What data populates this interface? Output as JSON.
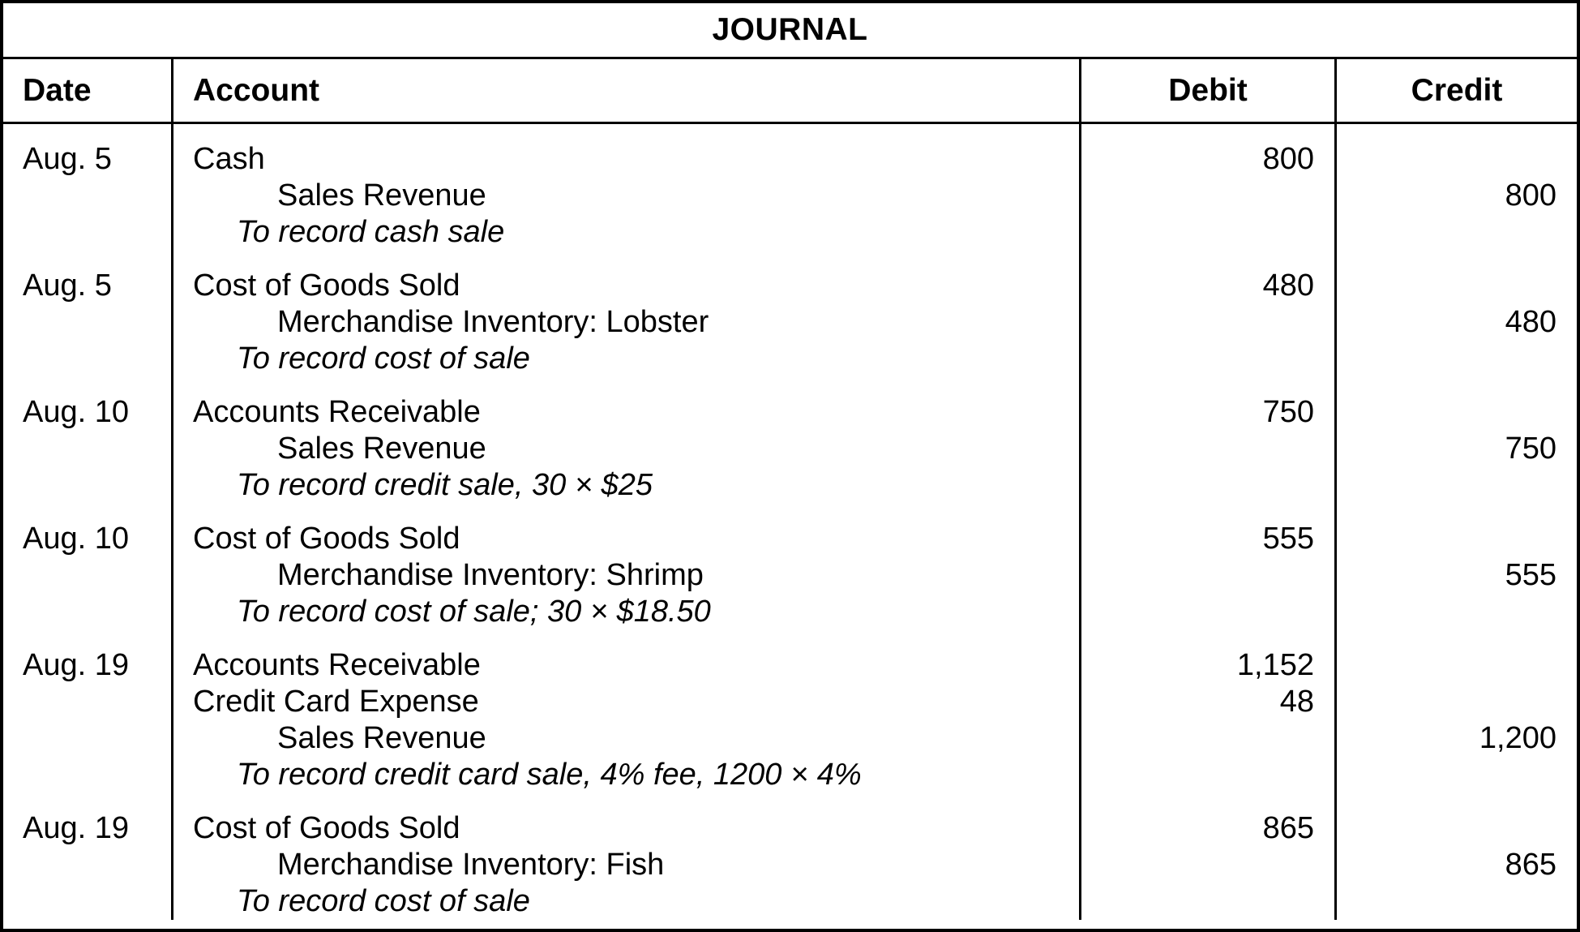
{
  "journal": {
    "title": "JOURNAL",
    "header": {
      "date": "Date",
      "account": "Account",
      "debit": "Debit",
      "credit": "Credit"
    },
    "entries": [
      {
        "date": "Aug. 5",
        "lines": [
          {
            "text": "Cash",
            "debit": "800"
          },
          {
            "text": "Sales Revenue",
            "credit": "800"
          },
          {
            "text": "To record cash sale"
          }
        ]
      },
      {
        "date": "Aug. 5",
        "lines": [
          {
            "text": "Cost of Goods Sold",
            "debit": "480"
          },
          {
            "text": "Merchandise Inventory: Lobster",
            "credit": "480"
          },
          {
            "text": "To record cost of sale"
          }
        ]
      },
      {
        "date": "Aug. 10",
        "lines": [
          {
            "text": "Accounts Receivable",
            "debit": "750"
          },
          {
            "text": "Sales Revenue",
            "credit": "750"
          },
          {
            "text": "To record credit sale, 30 × $25"
          }
        ]
      },
      {
        "date": "Aug. 10",
        "lines": [
          {
            "text": "Cost of Goods Sold",
            "debit": "555"
          },
          {
            "text": "Merchandise Inventory: Shrimp",
            "credit": "555"
          },
          {
            "text": "To record cost of sale; 30 × $18.50"
          }
        ]
      },
      {
        "date": "Aug. 19",
        "lines": [
          {
            "text": "Accounts Receivable",
            "debit": "1,152"
          },
          {
            "text": "Credit Card Expense",
            "debit": "48"
          },
          {
            "text": "Sales Revenue",
            "credit": "1,200"
          },
          {
            "text": "To record credit card sale, 4% fee, 1200 × 4%"
          }
        ]
      },
      {
        "date": "Aug. 19",
        "lines": [
          {
            "text": "Cost of Goods Sold",
            "debit": "865"
          },
          {
            "text": "Merchandise Inventory: Fish",
            "credit": "865"
          },
          {
            "text": "To record cost of sale"
          }
        ]
      }
    ]
  }
}
